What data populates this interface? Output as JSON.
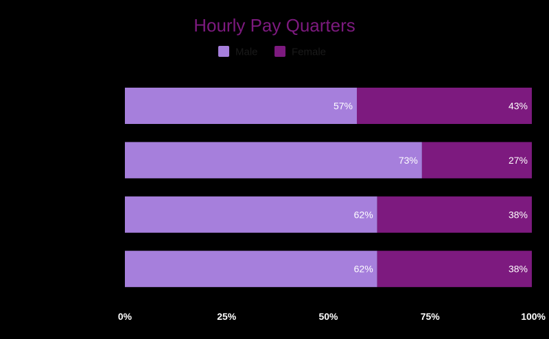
{
  "chart_data": {
    "type": "bar",
    "orientation": "horizontal",
    "stacked": true,
    "title": "Hourly Pay Quarters",
    "categories": [
      "",
      "",
      "",
      ""
    ],
    "series": [
      {
        "name": "Male",
        "color": "#a67fdc",
        "values": [
          57,
          73,
          62,
          62
        ],
        "labels": [
          "57%",
          "73%",
          "62%",
          "62%"
        ]
      },
      {
        "name": "Female",
        "color": "#7d1a7f",
        "values": [
          43,
          27,
          38,
          38
        ],
        "labels": [
          "43%",
          "27%",
          "38%",
          "38%"
        ]
      }
    ],
    "xlim": [
      0,
      100
    ],
    "x_ticks": [
      0,
      25,
      50,
      75,
      100
    ],
    "x_tick_labels": [
      "0%",
      "25%",
      "50%",
      "75%",
      "100%"
    ],
    "legend_position": "top-center",
    "grid": false,
    "colors": {
      "background": "#000000",
      "title": "#7d1a7f",
      "legend_text": "#1a1a1a",
      "axis_text": "#ffffff",
      "value_label": "#ffffff"
    }
  }
}
